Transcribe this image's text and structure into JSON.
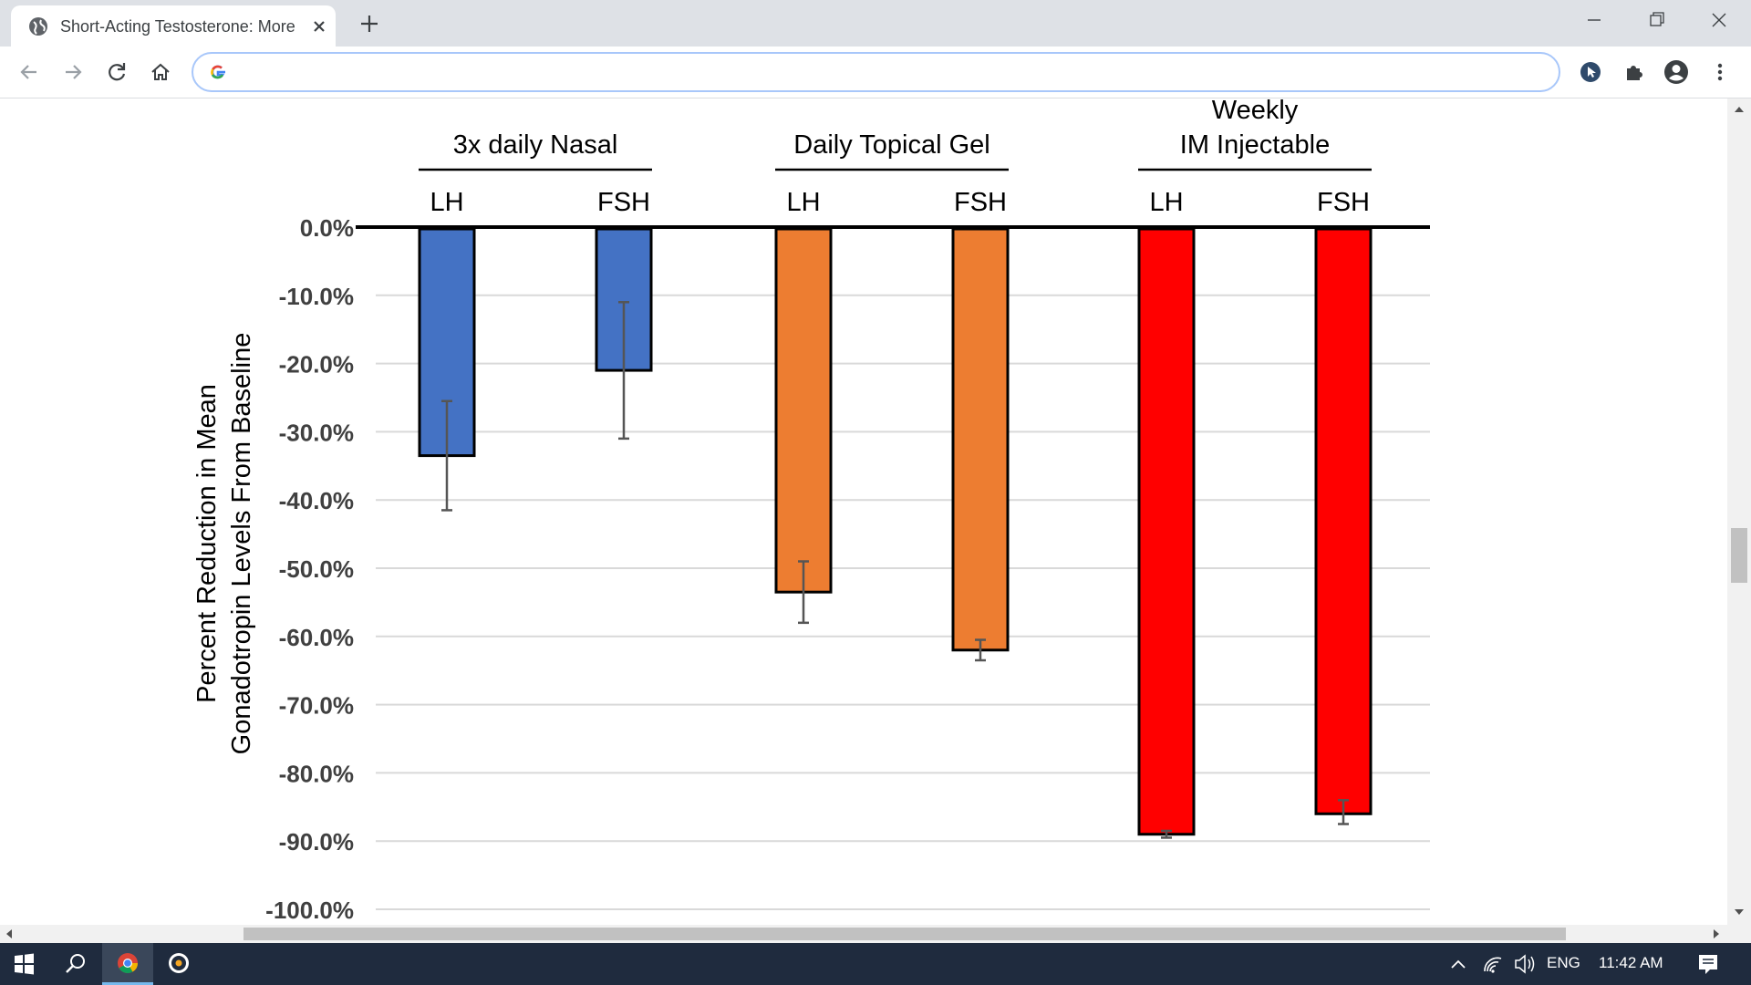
{
  "browser": {
    "tab_title": "Short-Acting Testosterone: More",
    "address_value": "",
    "icons": {
      "favicon": "globe-icon",
      "close": "close-icon",
      "new_tab": "plus-icon",
      "back": "back-arrow-icon",
      "forward": "forward-arrow-icon",
      "reload": "reload-icon",
      "home": "home-icon",
      "google": "google-g-icon",
      "cursor_ext": "cursor-extension-icon",
      "extensions": "puzzle-icon",
      "profile": "profile-icon",
      "menu": "kebab-menu-icon"
    }
  },
  "taskbar": {
    "language": "ENG",
    "time": "11:42 AM",
    "icons": [
      "windows-start-icon",
      "search-icon",
      "chrome-icon",
      "media-app-icon",
      "chevron-up-icon",
      "wifi-icon",
      "volume-icon",
      "notification-icon"
    ]
  },
  "chart_data": {
    "type": "bar",
    "ylabel": [
      "Percent Reduction in Mean",
      "Gonadotropin Levels From Baseline"
    ],
    "ylim": [
      -100,
      0
    ],
    "yticks": [
      "0.0%",
      "-10.0%",
      "-20.0%",
      "-30.0%",
      "-40.0%",
      "-50.0%",
      "-60.0%",
      "-70.0%",
      "-80.0%",
      "-90.0%",
      "-100.0%"
    ],
    "grid": true,
    "groups": [
      {
        "label": "3x daily Nasal",
        "color": "#4472c4",
        "bars": [
          {
            "category": "LH",
            "value": -33.5,
            "err_low": -41.5,
            "err_high": -25.5
          },
          {
            "category": "FSH",
            "value": -21.0,
            "err_low": -31.0,
            "err_high": -11.0
          }
        ]
      },
      {
        "label": "Daily Topical Gel",
        "color": "#ed7d31",
        "bars": [
          {
            "category": "LH",
            "value": -53.5,
            "err_low": -58.0,
            "err_high": -49.0
          },
          {
            "category": "FSH",
            "value": -62.0,
            "err_low": -63.5,
            "err_high": -60.5
          }
        ]
      },
      {
        "label": "Weekly\nIM Injectable",
        "color": "#ff0000",
        "bars": [
          {
            "category": "LH",
            "value": -89.0,
            "err_low": -89.5,
            "err_high": -88.5
          },
          {
            "category": "FSH",
            "value": -86.0,
            "err_low": -87.5,
            "err_high": -84.0
          }
        ]
      }
    ]
  }
}
